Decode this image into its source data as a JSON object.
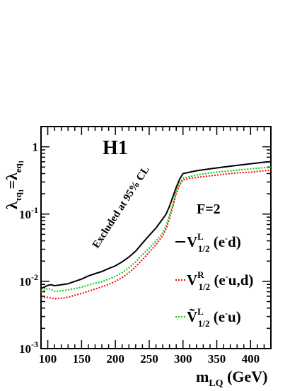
{
  "chart_data": {
    "type": "line",
    "title": "H1",
    "xlabel": "m",
    "xlabel_sub": "LQ",
    "xlabel_unit": " (GeV)",
    "ylabel": "λ",
    "ylabel_sub1": "τq",
    "ylabel_sub1_sub": "1",
    "ylabel_eq": "=λ",
    "ylabel_sub2": "eq",
    "ylabel_sub2_sub": "1",
    "xlim": [
      90,
      430
    ],
    "ylim": [
      0.001,
      2.0
    ],
    "y_scale": "log",
    "x_ticks": [
      100,
      150,
      200,
      250,
      300,
      350,
      400
    ],
    "y_ticks": [
      {
        "value": 0.001,
        "mantissa": "10",
        "exp": "-3"
      },
      {
        "value": 0.01,
        "mantissa": "10",
        "exp": "-2"
      },
      {
        "value": 0.1,
        "mantissa": "10",
        "exp": "-1"
      },
      {
        "value": 1,
        "mantissa": "1",
        "exp": ""
      }
    ],
    "annotations": {
      "excluded": "Excluded at 95% CL",
      "f_label": "F=2"
    },
    "series": [
      {
        "name_main": "V",
        "name_sup": "L",
        "name_sub": "1/2",
        "name_tail": " (e",
        "name_tail_sup": "-",
        "name_tail_end": "d)",
        "color": "#000000",
        "style": "solid",
        "x": [
          90,
          100,
          105,
          110,
          120,
          130,
          140,
          150,
          160,
          170,
          180,
          190,
          200,
          210,
          220,
          230,
          240,
          250,
          260,
          270,
          275,
          280,
          285,
          290,
          295,
          300,
          310,
          320,
          340,
          360,
          380,
          400,
          420,
          430
        ],
        "y": [
          0.0078,
          0.0087,
          0.0089,
          0.0086,
          0.0089,
          0.0092,
          0.01,
          0.0108,
          0.012,
          0.013,
          0.014,
          0.0155,
          0.017,
          0.0195,
          0.023,
          0.028,
          0.037,
          0.048,
          0.062,
          0.085,
          0.1,
          0.13,
          0.18,
          0.25,
          0.33,
          0.4,
          0.42,
          0.44,
          0.47,
          0.5,
          0.53,
          0.56,
          0.59,
          0.6
        ]
      },
      {
        "name_main": "V",
        "name_sup": "R",
        "name_sub": "1/2",
        "name_tail": " (e",
        "name_tail_sup": "-",
        "name_tail_end": "u,d)",
        "color": "#ff0000",
        "style": "dotted",
        "x": [
          90,
          100,
          110,
          120,
          130,
          140,
          150,
          160,
          170,
          180,
          190,
          200,
          210,
          220,
          230,
          240,
          250,
          260,
          270,
          275,
          280,
          285,
          290,
          295,
          300,
          310,
          320,
          340,
          360,
          380,
          400,
          420,
          430
        ],
        "y": [
          0.0057,
          0.0058,
          0.0055,
          0.0056,
          0.0058,
          0.0062,
          0.0066,
          0.0071,
          0.0077,
          0.0083,
          0.009,
          0.01,
          0.0114,
          0.0135,
          0.0165,
          0.021,
          0.027,
          0.035,
          0.048,
          0.06,
          0.085,
          0.13,
          0.2,
          0.27,
          0.32,
          0.34,
          0.35,
          0.37,
          0.39,
          0.41,
          0.42,
          0.44,
          0.45
        ]
      },
      {
        "name_main": "Ṽ",
        "name_sup": "L",
        "name_sub": "1/2",
        "name_tail": " (e",
        "name_tail_sup": "-",
        "name_tail_end": "u)",
        "color": "#00cc00",
        "style": "dotted",
        "x": [
          90,
          100,
          105,
          110,
          120,
          130,
          140,
          150,
          160,
          170,
          180,
          190,
          200,
          210,
          220,
          230,
          240,
          250,
          260,
          270,
          275,
          280,
          285,
          290,
          295,
          300,
          310,
          320,
          340,
          360,
          380,
          400,
          420,
          430
        ],
        "y": [
          0.007,
          0.0078,
          0.0076,
          0.0071,
          0.0072,
          0.0075,
          0.0078,
          0.0082,
          0.0088,
          0.0094,
          0.0098,
          0.0108,
          0.0118,
          0.0135,
          0.0158,
          0.0195,
          0.025,
          0.031,
          0.04,
          0.053,
          0.068,
          0.095,
          0.14,
          0.22,
          0.29,
          0.34,
          0.36,
          0.38,
          0.41,
          0.43,
          0.45,
          0.47,
          0.49,
          0.5
        ]
      }
    ]
  }
}
